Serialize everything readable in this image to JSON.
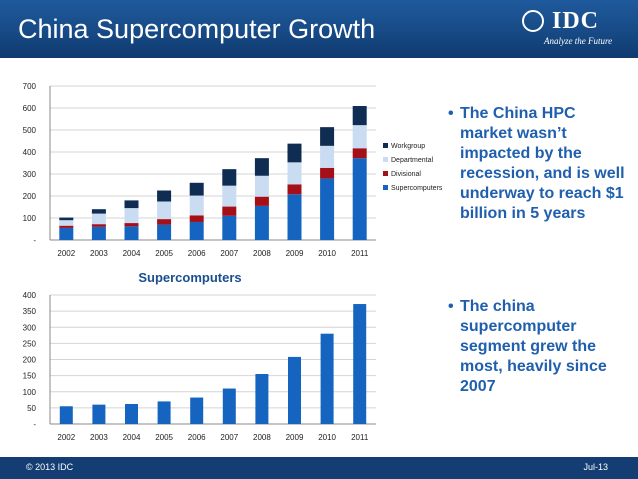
{
  "header": {
    "title": "China Supercomputer Growth",
    "logo": {
      "name": "IDC",
      "tagline": "Analyze the Future"
    }
  },
  "bullets": [
    {
      "marker": "•",
      "text": "The China HPC market wasn’t impacted by the recession, and is well underway to reach $1 billion in 5 years"
    },
    {
      "marker": "•",
      "text": "The china supercomputer segment grew the most, heavily since 2007"
    }
  ],
  "footer": {
    "copyright": "© 2013 IDC",
    "date": "Jul-13"
  },
  "colors": {
    "header_blue": "#1a4f8e",
    "supercomputers": "#1565c0",
    "divisional": "#a50f18",
    "departmental": "#c9dcf2",
    "workgroup": "#0f2c53",
    "bullet_text": "#1f5fae"
  },
  "chart_data": [
    {
      "type": "bar",
      "stacked": true,
      "title": "",
      "xlabel": "",
      "ylabel": "",
      "categories": [
        "2002",
        "2003",
        "2004",
        "2005",
        "2006",
        "2007",
        "2008",
        "2009",
        "2010",
        "2011"
      ],
      "ylim": [
        0,
        700
      ],
      "yticks": [
        0,
        100,
        200,
        300,
        400,
        500,
        600,
        700
      ],
      "ytick_labels": [
        "-",
        "100",
        "200",
        "300",
        "400",
        "500",
        "600",
        "700"
      ],
      "grid": true,
      "legend_position": "right",
      "legend_order": [
        "Workgroup",
        "Departmental",
        "Divisional",
        "Supercomputers"
      ],
      "series": [
        {
          "name": "Supercomputers",
          "color": "#1565c0",
          "values": [
            55,
            60,
            62,
            70,
            82,
            110,
            155,
            208,
            280,
            372
          ]
        },
        {
          "name": "Divisional",
          "color": "#a50f18",
          "values": [
            10,
            12,
            15,
            25,
            30,
            42,
            42,
            45,
            48,
            45
          ]
        },
        {
          "name": "Departmental",
          "color": "#c9dcf2",
          "values": [
            25,
            48,
            68,
            80,
            90,
            95,
            95,
            100,
            100,
            105
          ]
        },
        {
          "name": "Workgroup",
          "color": "#0f2c53",
          "values": [
            12,
            20,
            35,
            50,
            58,
            75,
            80,
            85,
            85,
            87
          ]
        }
      ]
    },
    {
      "type": "bar",
      "title": "Supercomputers",
      "xlabel": "",
      "ylabel": "",
      "categories": [
        "2002",
        "2003",
        "2004",
        "2005",
        "2006",
        "2007",
        "2008",
        "2009",
        "2010",
        "2011"
      ],
      "values": [
        55,
        60,
        62,
        70,
        82,
        110,
        155,
        208,
        280,
        372
      ],
      "color": "#1565c0",
      "ylim": [
        0,
        400
      ],
      "yticks": [
        0,
        50,
        100,
        150,
        200,
        250,
        300,
        350,
        400
      ],
      "ytick_labels": [
        "-",
        "50",
        "100",
        "150",
        "200",
        "250",
        "300",
        "350",
        "400"
      ],
      "grid": true
    }
  ]
}
